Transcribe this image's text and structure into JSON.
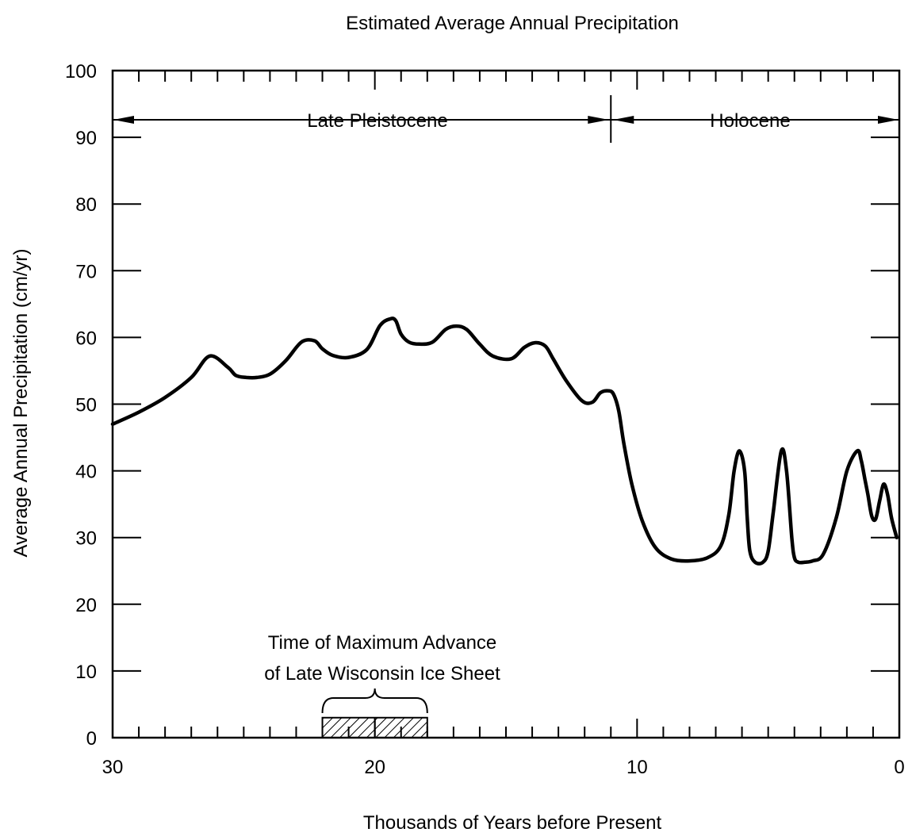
{
  "chart_data": {
    "type": "line",
    "title": "Estimated Average Annual Precipitation",
    "xlabel": "Thousands of Years before Present",
    "ylabel": "Average Annual Precipitation (cm/yr)",
    "xlim": [
      30,
      0
    ],
    "ylim": [
      0,
      100
    ],
    "x_ticks": [
      "30",
      "20",
      "10",
      "0"
    ],
    "y_ticks": [
      "0",
      "10",
      "20",
      "30",
      "40",
      "50",
      "60",
      "70",
      "80",
      "90",
      "100"
    ],
    "grid": false,
    "series": [
      {
        "x": [
          30,
          29,
          28,
          27,
          26.3,
          25.6,
          25.3,
          24.9,
          24.5,
          24,
          23.4,
          22.8,
          22.3,
          22.0,
          21.6,
          21.0,
          20.3,
          19.8,
          19.4,
          19.2,
          19.0,
          18.7,
          18.3,
          17.8,
          17.3,
          16.9,
          16.5,
          16.0,
          15.5,
          14.8,
          14.3,
          13.9,
          13.5,
          13.2,
          12.7,
          12.1,
          11.7,
          11.4,
          11.1,
          10.9,
          10.7,
          10.5,
          10.2,
          9.8,
          9.3,
          8.7,
          8.0,
          7.3,
          6.8,
          6.5,
          6.3,
          6.1,
          5.9,
          5.8,
          5.7,
          5.5,
          5.2,
          5.0,
          4.8,
          4.5,
          4.3,
          4.1,
          4.0,
          3.85,
          3.6,
          3.3,
          2.9,
          2.4,
          2.0,
          1.6,
          1.45,
          1.3,
          1.2,
          1.05,
          0.9,
          0.75,
          0.6,
          0.45,
          0.3,
          0.1
        ],
        "y": [
          47,
          48.8,
          51,
          54,
          57.2,
          55.5,
          54.3,
          54,
          54,
          54.5,
          56.5,
          59.3,
          59.5,
          58.3,
          57.3,
          57,
          58.2,
          61.8,
          62.8,
          62.5,
          60.5,
          59.3,
          59.0,
          59.3,
          61.2,
          61.7,
          61.2,
          59,
          57.2,
          56.8,
          58.5,
          59.2,
          58.7,
          56.8,
          53.5,
          50.5,
          50.3,
          51.7,
          52.0,
          51.5,
          49,
          44,
          38,
          32.5,
          28.5,
          26.8,
          26.5,
          27,
          28.8,
          33.5,
          40,
          43,
          40,
          33,
          28,
          26.3,
          26.3,
          28,
          34,
          43,
          40,
          30,
          27,
          26.3,
          26.3,
          26.5,
          27.5,
          33,
          40,
          43,
          41.5,
          38.5,
          36.5,
          33.2,
          32.8,
          35.5,
          38,
          36.5,
          33,
          30
        ]
      }
    ],
    "annotations": {
      "period1": "Late Pleistocene",
      "period2": "Holocene",
      "period_boundary_x": 11,
      "ice_line1": "Time of Maximum Advance",
      "ice_line2": "of Late Wisconsin Ice Sheet",
      "ice_range_x": [
        22,
        18
      ],
      "ice_bar_height": 3
    }
  }
}
